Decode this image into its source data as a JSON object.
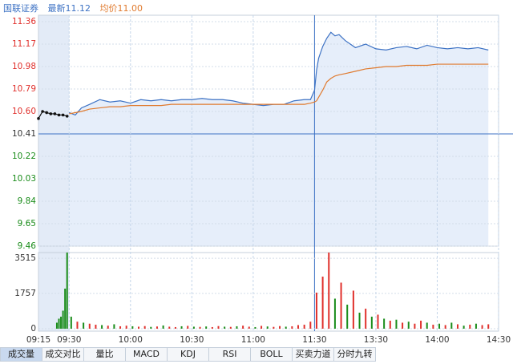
{
  "chart_data": {
    "type": "intraday",
    "header": {
      "name": "国联证券",
      "latest_label": "最新",
      "latest": 11.12,
      "avg_label": "均价",
      "avg": {
        "value": 11.0,
        "label": "11.00"
      }
    },
    "xlim": [
      0,
      225
    ],
    "xticks": [
      {
        "value": 0,
        "label": "09:15"
      },
      {
        "value": 15,
        "label": "09:30"
      },
      {
        "value": 45,
        "label": "10:00"
      },
      {
        "value": 75,
        "label": "10:30"
      },
      {
        "value": 105,
        "label": "11:00"
      },
      {
        "value": 135,
        "label": "11:30"
      },
      {
        "value": 165,
        "label": "13:30"
      },
      {
        "value": 195,
        "label": "14:00"
      },
      {
        "value": 225,
        "label": "14:30"
      }
    ],
    "ylim": [
      9.46,
      11.36
    ],
    "yticks": [
      11.36,
      11.17,
      10.98,
      10.79,
      {
        "value": 10.6,
        "label": "10.60"
      },
      10.41,
      10.22,
      10.03,
      9.84,
      9.65,
      9.46
    ],
    "prev_close": 10.41,
    "up_color": "#e0302c",
    "down_color": "#1a8c1a",
    "flat_color": "#333333",
    "grid": true,
    "series": [
      {
        "color": "#111111",
        "x": [
          0,
          2,
          4,
          6,
          8,
          10,
          12,
          14
        ],
        "values": [
          10.54,
          10.6,
          10.59,
          10.58,
          10.58,
          10.57,
          10.57,
          10.56
        ]
      },
      {
        "color": "#3d72c4",
        "fill": "#e6eefa",
        "x": [
          15,
          18,
          21,
          25,
          30,
          35,
          40,
          45,
          50,
          55,
          60,
          65,
          70,
          75,
          80,
          85,
          90,
          95,
          100,
          105,
          110,
          115,
          120,
          125,
          130,
          133,
          135,
          136,
          137,
          139,
          141,
          143,
          145,
          147,
          150,
          155,
          160,
          165,
          170,
          175,
          180,
          185,
          190,
          195,
          200,
          205,
          210,
          215,
          220
        ],
        "values": [
          10.59,
          10.57,
          10.63,
          10.66,
          10.7,
          10.68,
          10.69,
          10.67,
          10.7,
          10.69,
          10.7,
          10.69,
          10.7,
          10.7,
          10.71,
          10.7,
          10.7,
          10.69,
          10.67,
          10.66,
          10.65,
          10.66,
          10.66,
          10.69,
          10.7,
          10.7,
          10.78,
          10.95,
          11.05,
          11.15,
          11.22,
          11.27,
          11.24,
          11.25,
          11.2,
          11.14,
          11.17,
          11.13,
          11.12,
          11.14,
          11.15,
          11.13,
          11.16,
          11.14,
          11.13,
          11.14,
          11.13,
          11.14,
          11.12
        ]
      },
      {
        "color": "#e07a2e",
        "x": [
          15,
          18,
          21,
          25,
          30,
          35,
          40,
          45,
          50,
          55,
          60,
          65,
          70,
          75,
          80,
          85,
          90,
          95,
          100,
          105,
          110,
          115,
          120,
          125,
          130,
          133,
          135,
          136,
          137,
          139,
          141,
          143,
          145,
          147,
          150,
          155,
          160,
          165,
          170,
          175,
          180,
          185,
          190,
          195,
          200,
          205,
          210,
          215,
          220
        ],
        "values": [
          10.58,
          10.59,
          10.6,
          10.62,
          10.63,
          10.64,
          10.64,
          10.65,
          10.65,
          10.65,
          10.65,
          10.66,
          10.66,
          10.66,
          10.66,
          10.66,
          10.66,
          10.66,
          10.66,
          10.66,
          10.66,
          10.66,
          10.66,
          10.66,
          10.66,
          10.67,
          10.68,
          10.69,
          10.72,
          10.78,
          10.85,
          10.88,
          10.9,
          10.91,
          10.92,
          10.94,
          10.96,
          10.97,
          10.98,
          10.98,
          10.99,
          10.99,
          10.99,
          11.0,
          11.0,
          11.0,
          11.0,
          11.0,
          11.0
        ]
      }
    ],
    "volume": {
      "ylim": [
        -122,
        3801
      ],
      "yticks": [
        0,
        1757,
        3515
      ],
      "x": [
        9,
        10,
        11,
        12,
        13,
        14,
        16,
        19,
        22,
        25,
        28,
        31,
        34,
        37,
        40,
        43,
        46,
        49,
        52,
        55,
        58,
        61,
        64,
        67,
        70,
        73,
        76,
        79,
        82,
        85,
        88,
        91,
        94,
        97,
        100,
        103,
        106,
        109,
        112,
        115,
        118,
        121,
        124,
        127,
        130,
        133,
        136,
        139,
        142,
        145,
        148,
        151,
        154,
        157,
        160,
        163,
        166,
        169,
        172,
        175,
        178,
        181,
        184,
        187,
        190,
        193,
        196,
        199,
        202,
        205,
        208,
        211,
        214,
        217,
        220
      ],
      "values": [
        300,
        500,
        600,
        900,
        2000,
        3900,
        600,
        350,
        300,
        250,
        200,
        180,
        150,
        220,
        120,
        150,
        120,
        100,
        130,
        90,
        110,
        160,
        100,
        80,
        120,
        140,
        100,
        90,
        110,
        80,
        130,
        100,
        90,
        120,
        150,
        100,
        80,
        140,
        110,
        90,
        130,
        100,
        120,
        180,
        200,
        350,
        1800,
        2600,
        3800,
        1500,
        2300,
        1200,
        1900,
        800,
        1000,
        600,
        700,
        500,
        400,
        450,
        300,
        350,
        250,
        400,
        300,
        200,
        250,
        180,
        300,
        220,
        150,
        200,
        250,
        180,
        220
      ],
      "up": [
        false,
        false,
        false,
        false,
        false,
        false,
        false,
        true,
        false,
        true,
        true,
        false,
        true,
        false,
        true,
        true,
        false,
        true,
        true,
        false,
        true,
        false,
        true,
        true,
        false,
        true,
        false,
        true,
        false,
        true,
        true,
        false,
        true,
        false,
        true,
        true,
        false,
        true,
        false,
        true,
        true,
        false,
        true,
        true,
        true,
        true,
        true,
        true,
        true,
        false,
        true,
        false,
        true,
        false,
        true,
        false,
        true,
        false,
        true,
        false,
        true,
        false,
        true,
        true,
        false,
        true,
        false,
        true,
        false,
        true,
        false,
        true,
        false,
        true,
        true
      ]
    },
    "tabs": [
      "成交量",
      "成交对比",
      "量比",
      "MACD",
      "KDJ",
      "RSI",
      "BOLL",
      "买卖力道",
      "分时九转"
    ],
    "active_tab": 0
  }
}
